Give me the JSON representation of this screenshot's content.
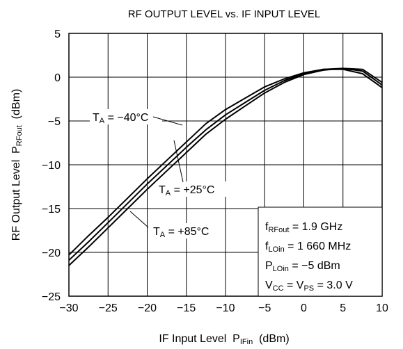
{
  "chart_data": {
    "type": "line",
    "title": "RF OUTPUT LEVEL vs. IF INPUT LEVEL",
    "x_label": [
      "IF Input Level  P",
      "IFin",
      "  (dBm)"
    ],
    "y_label": [
      "RF Output Level  P",
      "RFout",
      "  (dBm)"
    ],
    "x": [
      -30,
      -27.5,
      -25,
      -22.5,
      -20,
      -17.5,
      -15,
      -12.5,
      -10,
      -7.5,
      -5,
      -2.5,
      0,
      2.5,
      5,
      7.5,
      10
    ],
    "series": [
      {
        "name": [
          "T",
          "A",
          " = −40°C"
        ],
        "color": "#000000",
        "values": [
          -20.3,
          -18.1,
          -16.0,
          -13.8,
          -11.6,
          -9.5,
          -7.4,
          -5.3,
          -3.7,
          -2.4,
          -1.1,
          -0.2,
          0.5,
          0.9,
          0.9,
          0.4,
          -1.2
        ]
      },
      {
        "name": [
          "T",
          "A",
          " = +25°C"
        ],
        "color": "#000000",
        "values": [
          -20.9,
          -18.8,
          -16.6,
          -14.4,
          -12.2,
          -10.1,
          -8.0,
          -6.0,
          -4.3,
          -2.9,
          -1.5,
          -0.4,
          0.4,
          0.9,
          1.0,
          0.7,
          -0.9
        ]
      },
      {
        "name": [
          "T",
          "A",
          " = +85°C"
        ],
        "color": "#000000",
        "values": [
          -21.5,
          -19.4,
          -17.2,
          -15.0,
          -12.8,
          -10.7,
          -8.6,
          -6.5,
          -4.8,
          -3.3,
          -1.8,
          -0.6,
          0.3,
          0.8,
          1.0,
          0.9,
          -0.6
        ]
      }
    ],
    "xlim": [
      -30,
      10
    ],
    "ylim": [
      -25,
      5
    ],
    "xticks": [
      {
        "value": -30,
        "label": "−30"
      },
      {
        "value": -25,
        "label": "−25"
      },
      {
        "value": -20,
        "label": "−20"
      },
      {
        "value": -15,
        "label": "−15"
      },
      {
        "value": -10,
        "label": "−10"
      },
      {
        "value": -5,
        "label": "−5"
      },
      0,
      5,
      10
    ],
    "yticks": [
      {
        "value": -25,
        "label": "−25"
      },
      {
        "value": -20,
        "label": "−20"
      },
      {
        "value": -15,
        "label": "−15"
      },
      {
        "value": -10,
        "label": "−10"
      },
      {
        "value": -5,
        "label": "−5"
      },
      0,
      5
    ],
    "grid": true,
    "conditions": [
      [
        "f",
        "RFout",
        " = 1.9 GHz"
      ],
      [
        "f",
        "LOin",
        " = 1 660 MHz"
      ],
      [
        "P",
        "LOin",
        " = −5 dBm"
      ],
      [
        "V",
        "CC",
        " = V",
        "PS",
        " = 3.0 V"
      ]
    ]
  }
}
